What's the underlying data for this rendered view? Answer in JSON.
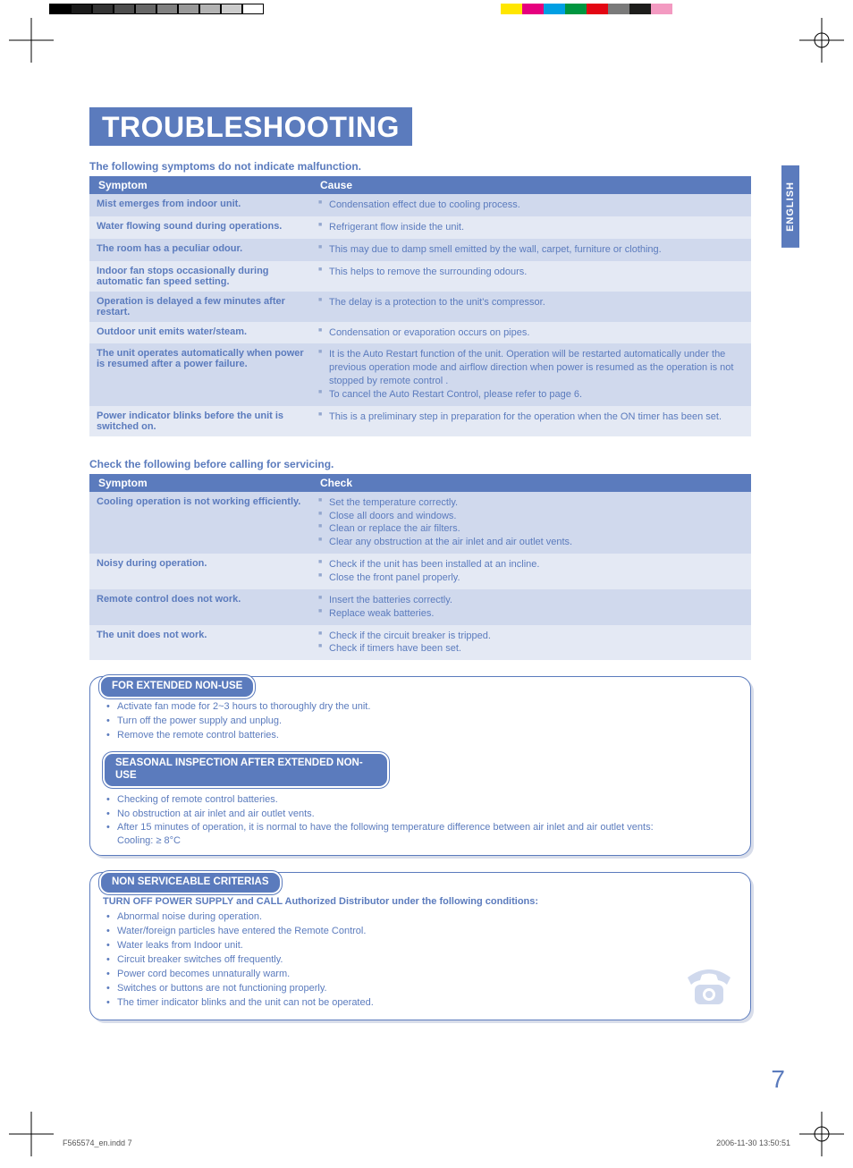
{
  "print_marks": {
    "grayscale": [
      "#000000",
      "#1a1a1a",
      "#333333",
      "#4d4d4d",
      "#666666",
      "#808080",
      "#999999",
      "#b3b3b3",
      "#cccccc",
      "#ffffff"
    ],
    "colors": [
      "#ffe600",
      "#e6007e",
      "#009fe3",
      "#009640",
      "#e30613",
      "#7a7a7a",
      "#1d1d1b",
      "#f39ac1",
      "#ffffff"
    ]
  },
  "title": "TROUBLESHOOTING",
  "lang_tab": "ENGLISH",
  "intro1": "The following symptoms do not indicate malfunction.",
  "table1": {
    "headers": [
      "Symptom",
      "Cause"
    ],
    "rows": [
      {
        "s": "Mist emerges from indoor unit.",
        "c": [
          "Condensation effect due to cooling process."
        ]
      },
      {
        "s": "Water flowing sound during operations.",
        "c": [
          "Refrigerant flow inside the unit."
        ]
      },
      {
        "s": "The room has a peculiar odour.",
        "c": [
          "This may due to damp smell emitted by the wall, carpet, furniture or clothing."
        ]
      },
      {
        "s": "Indoor fan stops occasionally during automatic fan speed setting.",
        "c": [
          "This helps to remove the surrounding odours."
        ]
      },
      {
        "s": "Operation is delayed a few minutes after restart.",
        "c": [
          "The delay is a protection to the unit's compressor."
        ]
      },
      {
        "s": "Outdoor unit emits water/steam.",
        "c": [
          "Condensation or evaporation occurs on pipes."
        ]
      },
      {
        "s": "The unit operates automatically when power is resumed after a power failure.",
        "c": [
          "It is the Auto Restart function of the unit. Operation will be restarted automatically under the previous operation mode and airflow direction when power is resumed as the operation is not stopped by remote control .",
          "To cancel the Auto Restart Control, please refer to page 6."
        ]
      },
      {
        "s": "Power indicator blinks before the unit is switched on.",
        "c": [
          "This is a preliminary step in preparation for the operation when the ON timer has been set."
        ]
      }
    ]
  },
  "intro2": "Check the following before calling for servicing.",
  "table2": {
    "headers": [
      "Symptom",
      "Check"
    ],
    "rows": [
      {
        "s": "Cooling operation is not working efficiently.",
        "c": [
          "Set the temperature correctly.",
          "Close all doors and windows.",
          "Clean or replace the air filters.",
          "Clear any obstruction at the air inlet and air outlet vents."
        ]
      },
      {
        "s": "Noisy during operation.",
        "c": [
          "Check if the unit has been installed at an incline.",
          "Close the front panel properly."
        ]
      },
      {
        "s": "Remote control does not work.",
        "c": [
          "Insert the batteries correctly.",
          "Replace weak batteries."
        ]
      },
      {
        "s": "The unit does not work.",
        "c": [
          "Check if the circuit breaker is tripped.",
          "Check if timers have been set."
        ]
      }
    ]
  },
  "box1": {
    "title": "FOR EXTENDED NON-USE",
    "items": [
      "Activate fan mode for 2~3 hours to thoroughly dry the unit.",
      "Turn off the power supply and unplug.",
      "Remove the remote control batteries."
    ],
    "sub_title": "SEASONAL INSPECTION AFTER EXTENDED NON-USE",
    "sub_items": [
      "Checking of remote control batteries.",
      "No obstruction at air inlet and air outlet vents.",
      "After 15 minutes of operation, it is normal to have the following temperature difference between air inlet and air outlet vents:"
    ],
    "sub_note": "Cooling: ≥ 8°C"
  },
  "box2": {
    "title": "NON SERVICEABLE CRITERIAS",
    "lead": "TURN OFF POWER SUPPLY and CALL Authorized Distributor under the following conditions:",
    "items": [
      "Abnormal noise during operation.",
      "Water/foreign particles have entered the Remote Control.",
      "Water leaks from Indoor unit.",
      "Circuit breaker switches off frequently.",
      "Power cord becomes unnaturally warm.",
      "Switches or buttons are not functioning properly.",
      "The timer indicator blinks and the unit can not be operated."
    ]
  },
  "page_num": "7",
  "footer": {
    "file": "F565574_en.indd   7",
    "stamp": "2006-11-30   13:50:51"
  },
  "colors": {
    "primary": "#5b7bbd",
    "row_odd": "#d0d9ed",
    "row_even": "#e4e9f4",
    "bullet": "#93a7ce"
  }
}
